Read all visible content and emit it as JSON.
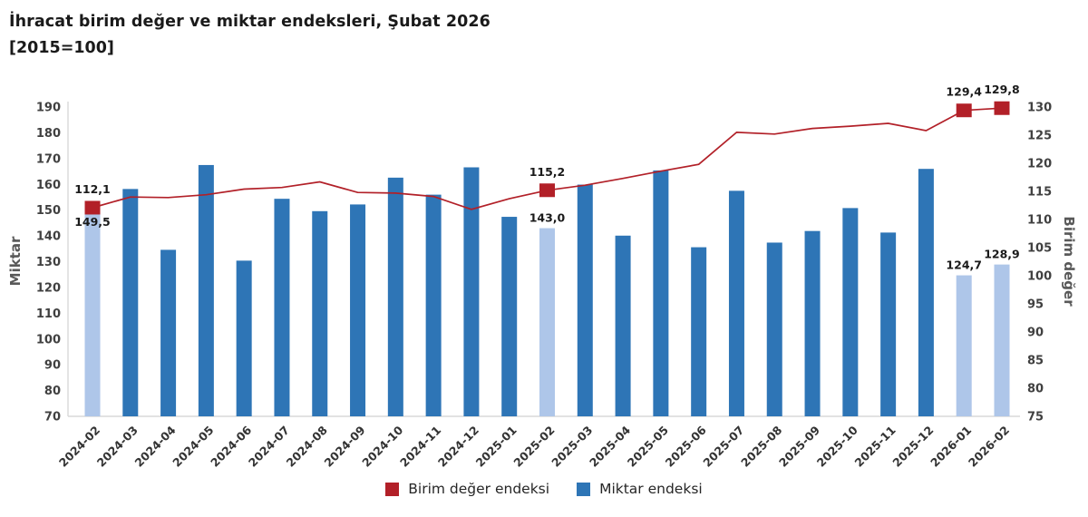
{
  "title": {
    "line1": "İhracat birim değer ve miktar endeksleri, Şubat 2026",
    "line2": "[2015=100]"
  },
  "chart_data": {
    "type": "bar+line combo",
    "categories": [
      "2024-02",
      "2024-03",
      "2024-04",
      "2024-05",
      "2024-06",
      "2024-07",
      "2024-08",
      "2024-09",
      "2024-10",
      "2024-11",
      "2024-12",
      "2025-01",
      "2025-02",
      "2025-03",
      "2025-04",
      "2025-05",
      "2025-06",
      "2025-07",
      "2025-08",
      "2025-09",
      "2025-10",
      "2025-11",
      "2025-12",
      "2026-01",
      "2026-02"
    ],
    "series": [
      {
        "name": "Miktar endeksi",
        "type": "bar",
        "axis": "left",
        "color": "#2E75B6",
        "highlight_color": "#AEC6E9",
        "highlight_indices": [
          0,
          12,
          23,
          24
        ],
        "values": [
          149.5,
          158.2,
          134.6,
          167.5,
          130.4,
          154.4,
          149.6,
          152.2,
          162.6,
          156.0,
          166.6,
          147.4,
          143.0,
          159.9,
          140.1,
          165.4,
          135.6,
          157.5,
          137.4,
          141.9,
          150.8,
          141.3,
          166.0,
          124.7,
          128.9
        ],
        "value_labels": {
          "0": "149,5",
          "12": "143,0",
          "23": "124,7",
          "24": "128,9"
        }
      },
      {
        "name": "Birim değer endeksi",
        "type": "line",
        "axis": "right",
        "color": "#B22028",
        "marker_indices": [
          0,
          12,
          23,
          24
        ],
        "values": [
          112.1,
          114.0,
          113.9,
          114.4,
          115.4,
          115.7,
          116.7,
          114.8,
          114.7,
          114.1,
          111.8,
          113.7,
          115.2,
          116.1,
          117.3,
          118.6,
          119.8,
          125.5,
          125.2,
          126.2,
          126.6,
          127.1,
          125.8,
          129.4,
          129.8
        ],
        "value_labels": {
          "0": "112,1",
          "12": "115,2",
          "23": "129,4",
          "24": "129,8"
        }
      }
    ],
    "left_axis": {
      "title": "Miktar",
      "min": 70,
      "max": 190,
      "step": 10
    },
    "right_axis": {
      "title": "Birim değer",
      "min": 75,
      "max": 130,
      "step": 5
    },
    "grid": false,
    "legend_position": "bottom",
    "legend": [
      {
        "label": "Birim değer endeksi",
        "color": "#B22028"
      },
      {
        "label": "Miktar endeksi",
        "color": "#2E75B6"
      }
    ],
    "colors": {
      "axis_line": "#D9D9D9",
      "tick_text": "#404040",
      "axis_title_text": "#595959",
      "data_label_text": "#1a1a1a"
    }
  }
}
